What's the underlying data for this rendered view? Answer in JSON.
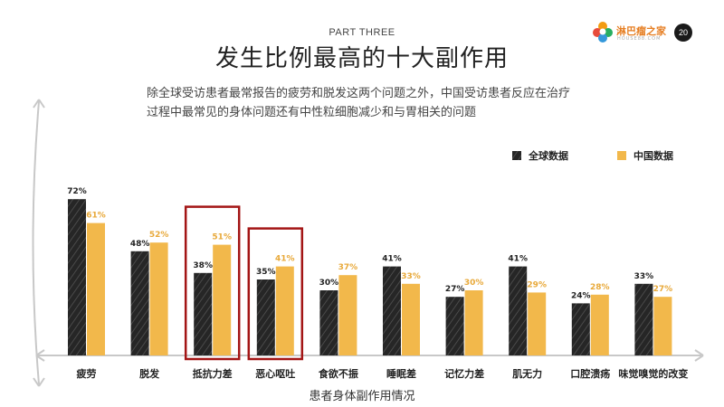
{
  "header": {
    "part": "PART THREE",
    "title": "发生比例最高的十大副作用",
    "description": "除全球受访患者最常报告的疲劳和脱发这两个问题之外，中国受访患者反应在治疗过程中最常见的身体问题还有中性粒细胞减少和与胃相关的问题",
    "logo_text": "淋巴瘤之家",
    "logo_sub": "HOUSE88.COM",
    "page_number": "20"
  },
  "colors": {
    "global": "#2b2b2b",
    "china": "#f2b84b",
    "china_label": "#e8a93a",
    "highlight": "#a31515",
    "axis": "#c8c8c8"
  },
  "chart_data": {
    "type": "bar",
    "categories": [
      "疲劳",
      "脱发",
      "抵抗力差",
      "恶心呕吐",
      "食欲不振",
      "睡眠差",
      "记忆力差",
      "肌无力",
      "口腔溃疡",
      "味觉嗅觉的改变"
    ],
    "series": [
      {
        "name": "全球数据",
        "values": [
          72,
          48,
          38,
          35,
          30,
          41,
          27,
          41,
          24,
          33
        ],
        "labels": [
          "72%",
          "48%",
          "38%",
          "35%",
          "30%",
          "41%",
          "27%",
          "41%",
          "24%",
          "33%"
        ]
      },
      {
        "name": "中国数据",
        "values": [
          61,
          52,
          51,
          41,
          37,
          33,
          30,
          29,
          28,
          27
        ],
        "labels": [
          "61%",
          "52%",
          "51%",
          "41%",
          "37%",
          "33%",
          "30%",
          "29%",
          "28%",
          "27%"
        ]
      }
    ],
    "highlighted_categories": [
      "抵抗力差",
      "恶心呕吐"
    ],
    "xlabel": "患者身体副作用情况",
    "ylabel": "",
    "ylim": [
      0,
      100
    ],
    "legend_position": "top-right",
    "grid": false
  }
}
